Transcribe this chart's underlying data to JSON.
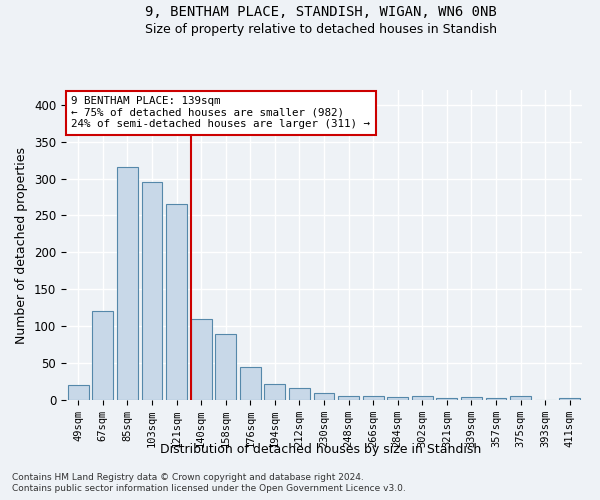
{
  "title1": "9, BENTHAM PLACE, STANDISH, WIGAN, WN6 0NB",
  "title2": "Size of property relative to detached houses in Standish",
  "xlabel": "Distribution of detached houses by size in Standish",
  "ylabel": "Number of detached properties",
  "categories": [
    "49sqm",
    "67sqm",
    "85sqm",
    "103sqm",
    "121sqm",
    "140sqm",
    "158sqm",
    "176sqm",
    "194sqm",
    "212sqm",
    "230sqm",
    "248sqm",
    "266sqm",
    "284sqm",
    "302sqm",
    "321sqm",
    "339sqm",
    "357sqm",
    "375sqm",
    "393sqm",
    "411sqm"
  ],
  "values": [
    20,
    120,
    315,
    295,
    265,
    110,
    90,
    45,
    22,
    16,
    9,
    6,
    5,
    4,
    5,
    3,
    4,
    3,
    5,
    0,
    3
  ],
  "bar_color": "#c8d8e8",
  "bar_edge_color": "#5588aa",
  "red_line_x": 4.575,
  "red_line_color": "#cc0000",
  "annotation_line1": "9 BENTHAM PLACE: 139sqm",
  "annotation_line2": "← 75% of detached houses are smaller (982)",
  "annotation_line3": "24% of semi-detached houses are larger (311) →",
  "annotation_box_edgecolor": "#cc0000",
  "ylim": [
    0,
    420
  ],
  "yticks": [
    0,
    50,
    100,
    150,
    200,
    250,
    300,
    350,
    400
  ],
  "footer1": "Contains HM Land Registry data © Crown copyright and database right 2024.",
  "footer2": "Contains public sector information licensed under the Open Government Licence v3.0.",
  "bg_color": "#eef2f6",
  "grid_color": "#ffffff"
}
